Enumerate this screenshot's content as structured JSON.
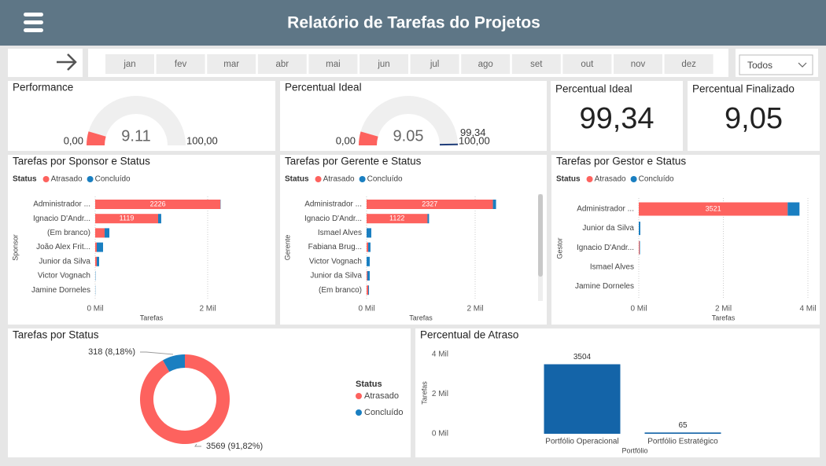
{
  "header": {
    "title": "Relatório de Tarefas do Projetos"
  },
  "months": [
    "jan",
    "fev",
    "mar",
    "abr",
    "mai",
    "jun",
    "jul",
    "ago",
    "set",
    "out",
    "nov",
    "dez"
  ],
  "filter": "Todos",
  "cards": [
    {
      "title": "Percentual Ideal",
      "value": "99,34"
    },
    {
      "title": "Percentual Finalizado",
      "value": "9,05"
    }
  ],
  "chart_data": [
    {
      "type": "gauge",
      "title": "Performance",
      "value": 9.11,
      "min": {
        "value": 0,
        "label": "0,00"
      },
      "max": {
        "value": 100,
        "label": "100,00"
      },
      "color": "#fd625e"
    },
    {
      "type": "gauge",
      "title": "Percentual Ideal",
      "value": 9.05,
      "min": {
        "value": 0,
        "label": "0,00"
      },
      "max": {
        "value": 100,
        "label": "100,00"
      },
      "target": {
        "value": 99.34,
        "label": "99,34"
      },
      "color": "#fd625e",
      "target_color": "#1f3d7a"
    },
    {
      "type": "hbar",
      "title": "Tarefas por Sponsor e Status",
      "legend_title": "Status",
      "categories": [
        "Administrador ...",
        "Ignacio D'Andr...",
        "(Em branco)",
        "João Alex Frit...",
        "Junior da Silva",
        "Victor Vognach",
        "Jamine Dorneles"
      ],
      "series": [
        {
          "name": "Atrasado",
          "color": "#fd625e",
          "values": [
            2226,
            1119,
            168,
            28,
            28,
            0,
            0
          ]
        },
        {
          "name": "Concluído",
          "color": "#1a7fc1",
          "values": [
            5,
            55,
            84,
            112,
            42,
            5,
            3
          ]
        }
      ],
      "xlim": [
        0,
        3000
      ],
      "xticks": [
        {
          "value": 0,
          "label": "0 Mil"
        },
        {
          "value": 2000,
          "label": "2 Mil"
        }
      ],
      "x_label": "Tarefas",
      "y_label": "Sponsor",
      "grid": true
    },
    {
      "type": "hbar",
      "title": "Tarefas por Gerente e Status",
      "legend_title": "Status",
      "categories": [
        "Administrador ...",
        "Ignacio D'Andr...",
        "Ismael Alves",
        "Fabiana Brug...",
        "Victor Vognach",
        "Junior da Silva",
        "(Em branco)"
      ],
      "series": [
        {
          "name": "Atrasado",
          "color": "#fd625e",
          "values": [
            2327,
            1122,
            0,
            29,
            0,
            15,
            29
          ]
        },
        {
          "name": "Concluído",
          "color": "#1a7fc1",
          "values": [
            58,
            29,
            87,
            43,
            58,
            43,
            15
          ]
        }
      ],
      "xlim": [
        0,
        3000
      ],
      "xticks": [
        {
          "value": 0,
          "label": "0 Mil"
        },
        {
          "value": 2000,
          "label": "2 Mil"
        }
      ],
      "x_label": "Tarefas",
      "y_label": "Gerente",
      "grid": true
    },
    {
      "type": "hbar",
      "title": "Tarefas por Gestor e Status",
      "legend_title": "Status",
      "categories": [
        "Administrador ...",
        "Junior da Silva",
        "Ignacio D'Andr...",
        "Ismael Alves",
        "Jamine Dorneles"
      ],
      "series": [
        {
          "name": "Atrasado",
          "color": "#fd625e",
          "values": [
            3521,
            0,
            19,
            0,
            0
          ]
        },
        {
          "name": "Concluído",
          "color": "#1a7fc1",
          "values": [
            280,
            37,
            10,
            0,
            0
          ]
        }
      ],
      "xlim": [
        0,
        4000
      ],
      "xticks": [
        {
          "value": 0,
          "label": "0 Mil"
        },
        {
          "value": 2000,
          "label": "2 Mil"
        },
        {
          "value": 4000,
          "label": "4 Mil"
        }
      ],
      "x_label": "Tarefas",
      "y_label": "Gestor",
      "grid": true
    },
    {
      "type": "donut",
      "title": "Tarefas por Status",
      "legend_title": "Status",
      "categories": [
        "Atrasado",
        "Concluído"
      ],
      "values": [
        3569,
        318
      ],
      "value_labels": [
        "3569 (91,82%)",
        "318 (8,18%)"
      ],
      "colors": [
        "#fd625e",
        "#1a7fc1"
      ]
    },
    {
      "type": "column",
      "title": "Percentual de Atraso",
      "categories": [
        "Portfólio Operacional",
        "Portfólio Estratégico"
      ],
      "values": [
        3504,
        65
      ],
      "ylim": [
        0,
        4000
      ],
      "yticks": [
        {
          "value": 0,
          "label": "0 Mil"
        },
        {
          "value": 2000,
          "label": "2 Mil"
        },
        {
          "value": 4000,
          "label": "4 Mil"
        }
      ],
      "x_label": "Portfólio",
      "y_label": "Tarefas",
      "color": "#1464a8"
    }
  ]
}
